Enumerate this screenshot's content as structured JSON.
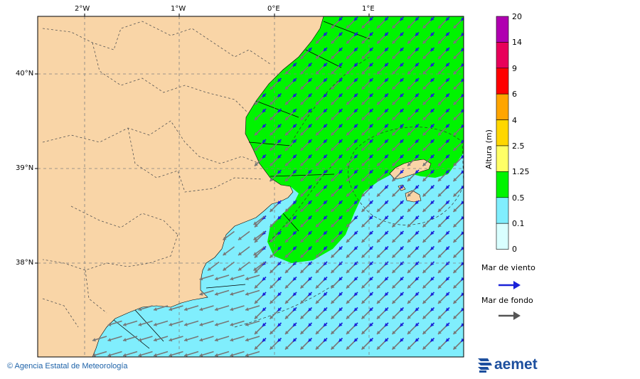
{
  "map": {
    "lon_labels": [
      "2°W",
      "1°W",
      "0°E",
      "1°E"
    ],
    "lat_labels": [
      "40°N",
      "39°N",
      "38°N"
    ],
    "colors": {
      "land": "#f9d5a7",
      "sea_low": "#80eefd",
      "sea_mid": "#00f400",
      "wind_arrow": "#1a22d8",
      "swell_arrow": "#777777"
    },
    "wind_direction": "south-west",
    "swell_direction": "south-west"
  },
  "colorbar": {
    "title": "Altura (m)",
    "levels": [
      "20",
      "14",
      "9",
      "6",
      "4",
      "2.5",
      "1.25",
      "0.5",
      "0.1",
      "0"
    ],
    "colors": [
      "#b000b0",
      "#e8005a",
      "#ff0000",
      "#ffa500",
      "#ffd700",
      "#ffff66",
      "#00f400",
      "#80eefd",
      "#d9ffff"
    ]
  },
  "legend": {
    "wind_sea": "Mar de viento",
    "swell": "Mar de fondo"
  },
  "footer": {
    "copyright": "© Agencia Estatal de Meteorología",
    "brand": "aemet"
  }
}
